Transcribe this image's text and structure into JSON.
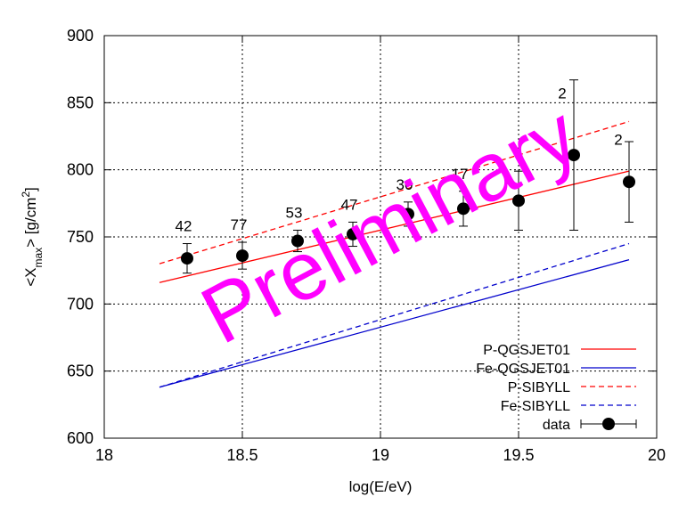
{
  "chart_data": {
    "type": "scatter",
    "xlabel": "log(E/eV)",
    "ylabel": "<X_max> [g/cm^2]",
    "xlim": [
      18,
      20
    ],
    "ylim": [
      600,
      900
    ],
    "xticks": [
      "18",
      "18.5",
      "19",
      "19.5",
      "20"
    ],
    "yticks": [
      "600",
      "650",
      "700",
      "750",
      "800",
      "850",
      "900"
    ],
    "grid": true,
    "legend_position": "bottom-right",
    "series": [
      {
        "name": "P-QGSJET01",
        "kind": "line",
        "dash": "solid",
        "color": "#ff0000",
        "x": [
          18.2,
          19.9
        ],
        "y": [
          716,
          799
        ]
      },
      {
        "name": "Fe-QGSJET01",
        "kind": "line",
        "dash": "solid",
        "color": "#0000cc",
        "x": [
          18.2,
          19.9
        ],
        "y": [
          638,
          733
        ]
      },
      {
        "name": "P-SIBYLL",
        "kind": "line",
        "dash": "dashed",
        "color": "#ff0000",
        "x": [
          18.2,
          19.9
        ],
        "y": [
          730,
          836
        ]
      },
      {
        "name": "Fe-SIBYLL",
        "kind": "line",
        "dash": "dashed",
        "color": "#0000cc",
        "x": [
          18.2,
          19.9
        ],
        "y": [
          638,
          745
        ]
      },
      {
        "name": "data",
        "kind": "points",
        "color": "#000000",
        "points": [
          {
            "x": 18.3,
            "y": 734,
            "err": 11,
            "count": "42"
          },
          {
            "x": 18.5,
            "y": 736,
            "err": 10,
            "count": "77"
          },
          {
            "x": 18.7,
            "y": 747,
            "err": 8,
            "count": "53"
          },
          {
            "x": 18.9,
            "y": 752,
            "err": 9,
            "count": "47"
          },
          {
            "x": 19.1,
            "y": 767,
            "err": 9,
            "count": "30"
          },
          {
            "x": 19.3,
            "y": 771,
            "err": 13,
            "count": "17"
          },
          {
            "x": 19.5,
            "y": 777,
            "err": 22,
            "count": ""
          },
          {
            "x": 19.7,
            "y": 811,
            "err": 56,
            "count": "2"
          },
          {
            "x": 19.9,
            "y": 791,
            "err": 30,
            "count": "2"
          }
        ]
      }
    ],
    "annotations": [
      "Preliminary"
    ]
  },
  "ylabel_parts": {
    "pre": "<X",
    "sub": "max",
    "mid": "> [g/cm",
    "sup": "2",
    "post": "]"
  },
  "colors": {
    "watermark": "#ff00ff",
    "red": "#ff0000",
    "blue": "#0000cc"
  }
}
